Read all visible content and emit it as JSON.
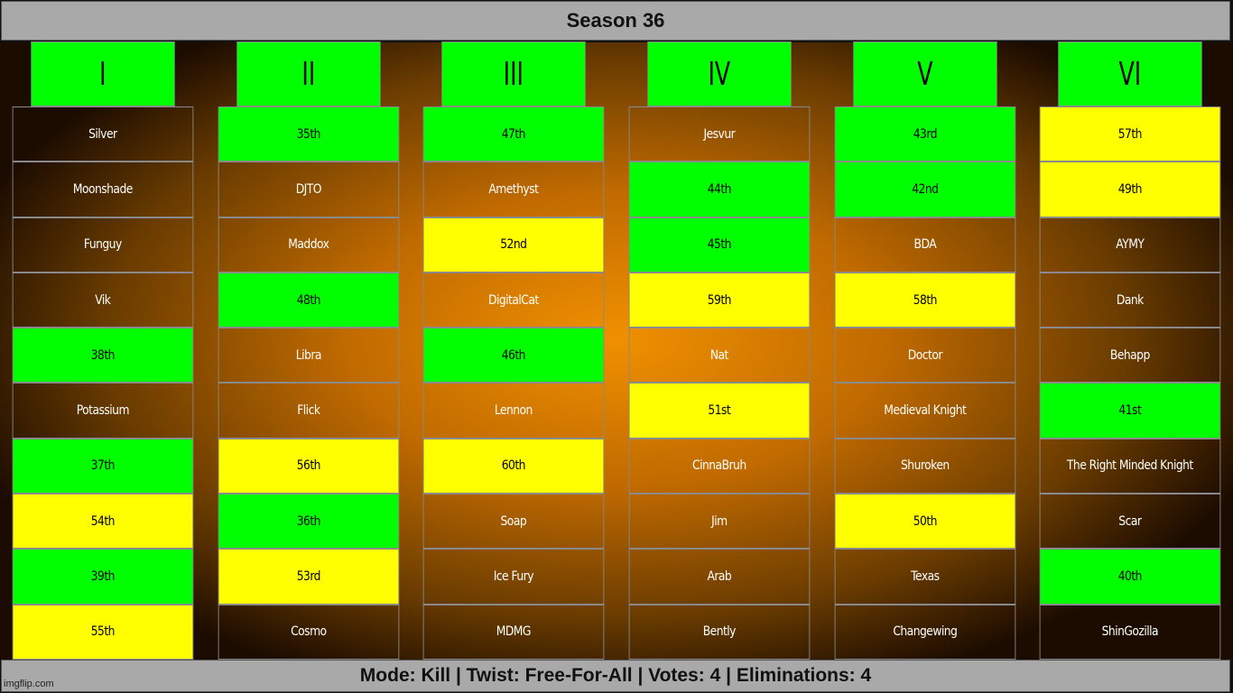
{
  "title": "Season 36",
  "columns": [
    "I",
    "II",
    "III",
    "IV",
    "V",
    "VI"
  ],
  "rows": [
    [
      {
        "t": "Silver",
        "s": "dark"
      },
      {
        "t": "35th",
        "s": "green"
      },
      {
        "t": "47th",
        "s": "green"
      },
      {
        "t": "Jesvur",
        "s": "dark"
      },
      {
        "t": "43rd",
        "s": "green"
      },
      {
        "t": "57th",
        "s": "yellow"
      }
    ],
    [
      {
        "t": "Moonshade",
        "s": "dark"
      },
      {
        "t": "DJTO",
        "s": "dark"
      },
      {
        "t": "Amethyst",
        "s": "dark"
      },
      {
        "t": "44th",
        "s": "green"
      },
      {
        "t": "42nd",
        "s": "green"
      },
      {
        "t": "49th",
        "s": "yellow"
      }
    ],
    [
      {
        "t": "Funguy",
        "s": "dark"
      },
      {
        "t": "Maddox",
        "s": "dark"
      },
      {
        "t": "52nd",
        "s": "yellow"
      },
      {
        "t": "45th",
        "s": "green"
      },
      {
        "t": "BDA",
        "s": "dark"
      },
      {
        "t": "AYMY",
        "s": "dark"
      }
    ],
    [
      {
        "t": "Vik",
        "s": "dark"
      },
      {
        "t": "48th",
        "s": "green"
      },
      {
        "t": "DigitalCat",
        "s": "dark"
      },
      {
        "t": "59th",
        "s": "yellow"
      },
      {
        "t": "58th",
        "s": "yellow"
      },
      {
        "t": "Dank",
        "s": "dark"
      }
    ],
    [
      {
        "t": "38th",
        "s": "green"
      },
      {
        "t": "Libra",
        "s": "dark"
      },
      {
        "t": "46th",
        "s": "green"
      },
      {
        "t": "Nat",
        "s": "dark"
      },
      {
        "t": "Doctor",
        "s": "dark"
      },
      {
        "t": "Behapp",
        "s": "dark"
      }
    ],
    [
      {
        "t": "Potassium",
        "s": "dark"
      },
      {
        "t": "Flick",
        "s": "dark"
      },
      {
        "t": "Lennon",
        "s": "dark"
      },
      {
        "t": "51st",
        "s": "yellow"
      },
      {
        "t": "Medieval Knight",
        "s": "dark"
      },
      {
        "t": "41st",
        "s": "green"
      }
    ],
    [
      {
        "t": "37th",
        "s": "green"
      },
      {
        "t": "56th",
        "s": "yellow"
      },
      {
        "t": "60th",
        "s": "yellow"
      },
      {
        "t": "CinnaBruh",
        "s": "dark"
      },
      {
        "t": "Shuroken",
        "s": "dark"
      },
      {
        "t": "The Right Minded Knight",
        "s": "dark"
      }
    ],
    [
      {
        "t": "54th",
        "s": "yellow"
      },
      {
        "t": "36th",
        "s": "green"
      },
      {
        "t": "Soap",
        "s": "dark"
      },
      {
        "t": "Jim",
        "s": "dark"
      },
      {
        "t": "50th",
        "s": "yellow"
      },
      {
        "t": "Scar",
        "s": "dark"
      }
    ],
    [
      {
        "t": "39th",
        "s": "green"
      },
      {
        "t": "53rd",
        "s": "yellow"
      },
      {
        "t": "Ice Fury",
        "s": "dark"
      },
      {
        "t": "Arab",
        "s": "dark"
      },
      {
        "t": "Texas",
        "s": "dark"
      },
      {
        "t": "40th",
        "s": "green"
      }
    ],
    [
      {
        "t": "55th",
        "s": "yellow"
      },
      {
        "t": "Cosmo",
        "s": "dark"
      },
      {
        "t": "MDMG",
        "s": "dark"
      },
      {
        "t": "Bently",
        "s": "dark"
      },
      {
        "t": "Changewing",
        "s": "dark"
      },
      {
        "t": "ShinGozilla",
        "s": "dark"
      }
    ]
  ],
  "footer": "Mode: Kill | Twist: Free-For-All | Votes: 4 | Eliminations: 4",
  "watermark": "imgflip.com",
  "colors": {
    "green": "#00ff00",
    "yellow": "#ffff00",
    "orange": "#f09000",
    "header_bar": "#a9a9a9"
  }
}
